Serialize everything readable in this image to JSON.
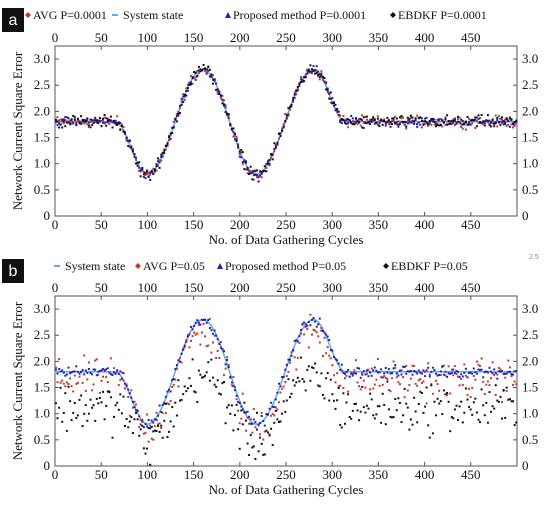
{
  "figure": {
    "corner_badge": "2.5",
    "panels": [
      "a",
      "b"
    ]
  },
  "chart_data": [
    {
      "type": "scatter",
      "panel_label": "a",
      "noise_level": "P=0.0001",
      "xlabel": "No. of Data Gathering Cycles",
      "ylabel": "Network Current Square Error",
      "xlim": [
        0,
        500
      ],
      "ylim": [
        0,
        3.25
      ],
      "x_ticks": [
        "0",
        "50",
        "100",
        "150",
        "200",
        "250",
        "300",
        "350",
        "400",
        "450"
      ],
      "y_ticks": [
        "0",
        "0.5",
        "1.0",
        "1.5",
        "2.0",
        "2.5",
        "3.0"
      ],
      "legend": [
        {
          "label": "AVG P=0.0001",
          "color": "#c0392b",
          "marker": "diamond"
        },
        {
          "label": "System state",
          "color": "#5dade2",
          "marker": "dash"
        },
        {
          "label": "Proposed method P=0.0001",
          "color": "#2020c0",
          "marker": "triangle"
        },
        {
          "label": "EBDKF P=0.0001",
          "color": "#111111",
          "marker": "diamond"
        }
      ],
      "system_state": {
        "x": [
          0,
          65,
          100,
          160,
          218,
          280,
          315,
          500
        ],
        "y": [
          1.8,
          1.8,
          0.8,
          2.8,
          0.8,
          2.8,
          1.8,
          1.8
        ]
      },
      "series": [
        {
          "name": "AVG P=0.0001",
          "color": "#c0392b",
          "spread": 0.08
        },
        {
          "name": "Proposed method P=0.0001",
          "color": "#2020c0",
          "spread": 0.07
        },
        {
          "name": "EBDKF P=0.0001",
          "color": "#111111",
          "spread": 0.09
        }
      ],
      "grid": false,
      "legend_position": "top"
    },
    {
      "type": "scatter",
      "panel_label": "b",
      "noise_level": "P=0.05",
      "xlabel": "No. of Data Gathering Cycles",
      "ylabel": "Network Current Square Error",
      "xlim": [
        0,
        500
      ],
      "ylim": [
        0,
        3.25
      ],
      "x_ticks": [
        "0",
        "50",
        "100",
        "150",
        "200",
        "250",
        "300",
        "350",
        "400",
        "450"
      ],
      "y_ticks": [
        "0",
        "0.5",
        "1.0",
        "1.5",
        "2.0",
        "2.5",
        "3.0"
      ],
      "legend": [
        {
          "label": "System state",
          "color": "#5dade2",
          "marker": "dash"
        },
        {
          "label": "AVG P=0.05",
          "color": "#c0392b",
          "marker": "diamond"
        },
        {
          "label": "Proposed method P=0.05",
          "color": "#2020c0",
          "marker": "triangle"
        },
        {
          "label": "EBDKF P=0.05",
          "color": "#111111",
          "marker": "diamond"
        }
      ],
      "system_state": {
        "x": [
          0,
          65,
          100,
          160,
          218,
          280,
          315,
          500
        ],
        "y": [
          1.8,
          1.8,
          0.8,
          2.8,
          0.8,
          2.8,
          1.8,
          1.8
        ]
      },
      "series": [
        {
          "name": "AVG P=0.05",
          "color": "#c0392b",
          "spread": 0.28,
          "scale": 0.92
        },
        {
          "name": "Proposed method P=0.05",
          "color": "#2020c0",
          "spread": 0.08,
          "scale": 1.0
        },
        {
          "name": "EBDKF P=0.05",
          "color": "#111111",
          "spread": 0.35,
          "scale": 0.62
        }
      ],
      "grid": false,
      "legend_position": "top"
    }
  ]
}
